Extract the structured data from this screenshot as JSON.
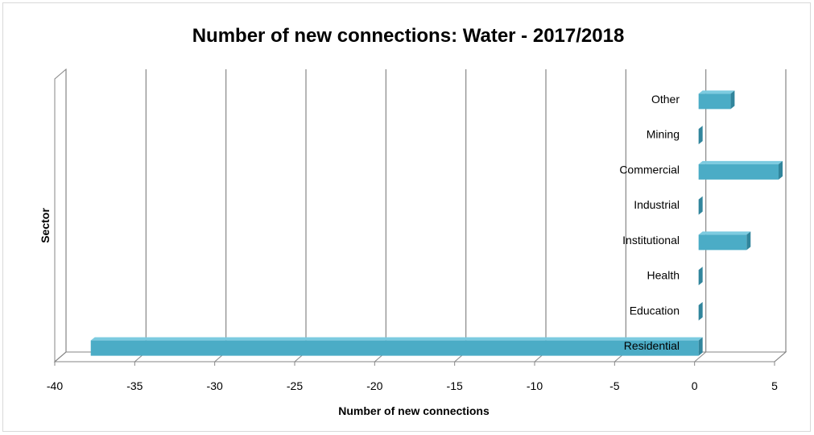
{
  "chart_data": {
    "type": "bar",
    "orientation": "horizontal",
    "style": "3d-clustered",
    "title": "Number of new connections: Water - 2017/2018",
    "xlabel": "Number of new connections",
    "ylabel": "Sector",
    "categories": [
      "Residential",
      "Education",
      "Health",
      "Institutional",
      "Industrial",
      "Commercial",
      "Mining",
      "Other"
    ],
    "values": [
      -38,
      0,
      0,
      3,
      0,
      5,
      0,
      2
    ],
    "xlim": [
      -40,
      5
    ],
    "xticks": [
      -40,
      -35,
      -30,
      -25,
      -20,
      -15,
      -10,
      -5,
      0,
      5
    ],
    "gridlines": "vertical",
    "legend": "none",
    "colors": {
      "bar_front": "#4bacc6",
      "bar_top": "#7ccbe0",
      "bar_side": "#31859c",
      "gridline": "#868686",
      "wall": "#868686"
    }
  }
}
